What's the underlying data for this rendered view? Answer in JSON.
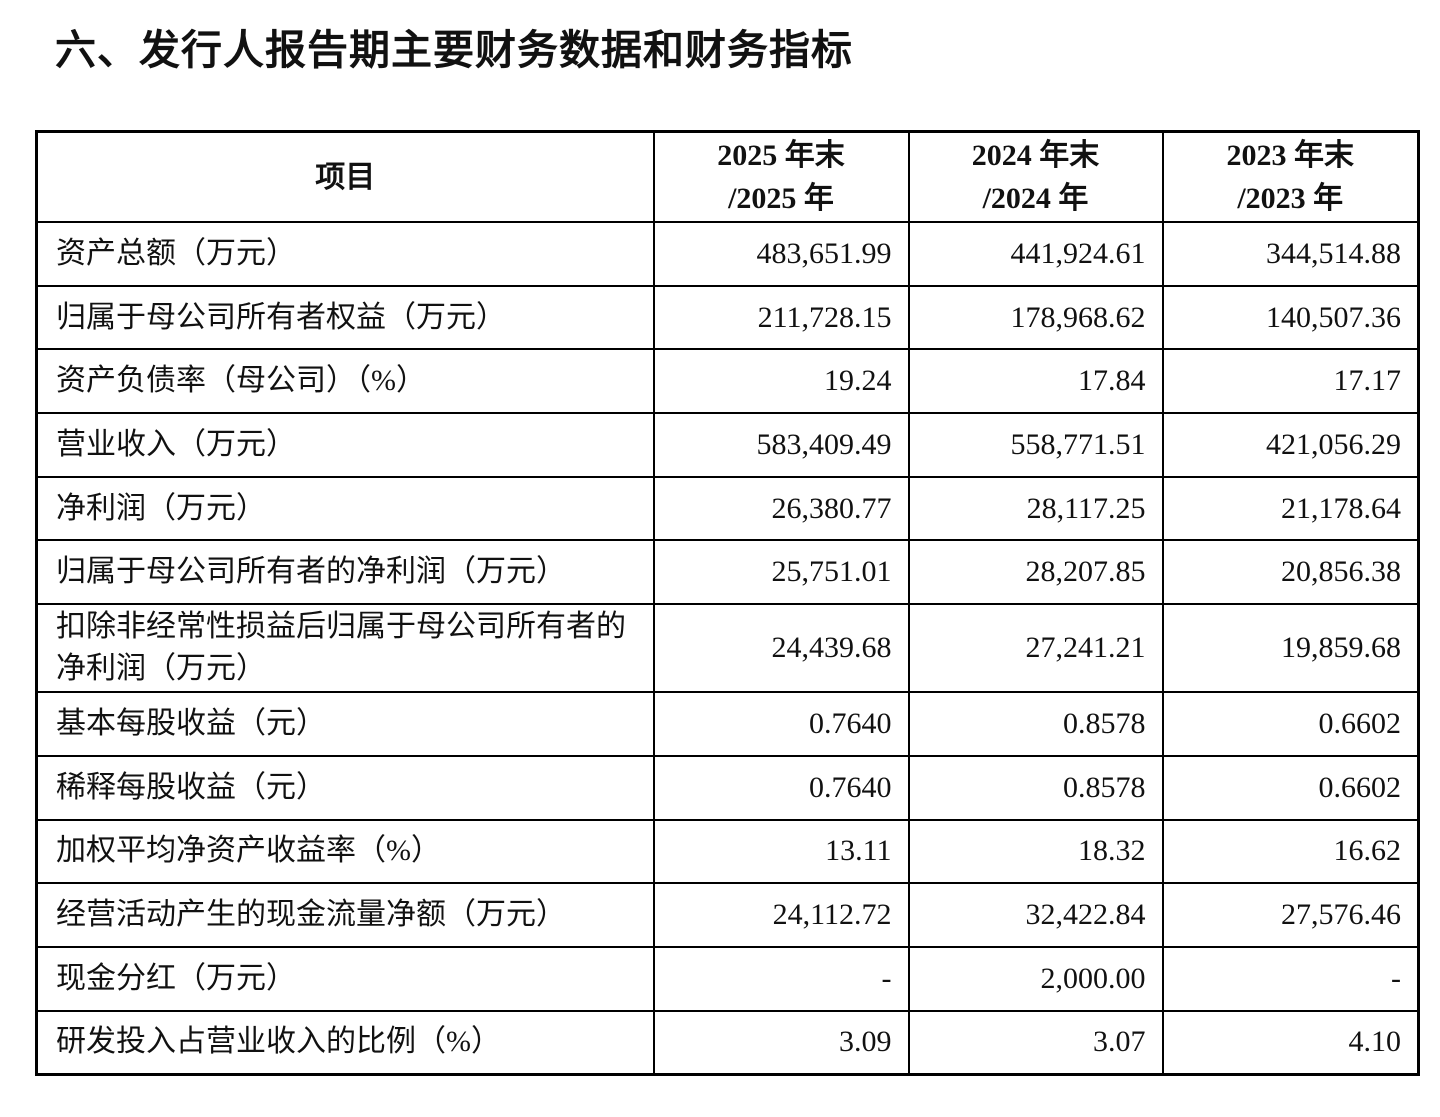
{
  "title": "六、发行人报告期主要财务数据和财务指标",
  "table": {
    "header": [
      [
        "项目"
      ],
      [
        "2025 年末",
        "/2025 年"
      ],
      [
        "2024 年末",
        "/2024 年"
      ],
      [
        "2023 年末",
        "/2023 年"
      ]
    ],
    "rows": [
      [
        "资产总额（万元）",
        "483,651.99",
        "441,924.61",
        "344,514.88"
      ],
      [
        "归属于母公司所有者权益（万元）",
        "211,728.15",
        "178,968.62",
        "140,507.36"
      ],
      [
        "资产负债率（母公司）（%）",
        "19.24",
        "17.84",
        "17.17"
      ],
      [
        "营业收入（万元）",
        "583,409.49",
        "558,771.51",
        "421,056.29"
      ],
      [
        "净利润（万元）",
        "26,380.77",
        "28,117.25",
        "21,178.64"
      ],
      [
        "归属于母公司所有者的净利润（万元）",
        "25,751.01",
        "28,207.85",
        "20,856.38"
      ],
      [
        "扣除非经常性损益后归属于母公司所有者的净利润（万元）",
        "24,439.68",
        "27,241.21",
        "19,859.68"
      ],
      [
        "基本每股收益（元）",
        "0.7640",
        "0.8578",
        "0.6602"
      ],
      [
        "稀释每股收益（元）",
        "0.7640",
        "0.8578",
        "0.6602"
      ],
      [
        "加权平均净资产收益率（%）",
        "13.11",
        "18.32",
        "16.62"
      ],
      [
        "经营活动产生的现金流量净额（万元）",
        "24,112.72",
        "32,422.84",
        "27,576.46"
      ],
      [
        "现金分红（万元）",
        "-",
        "2,000.00",
        "-"
      ],
      [
        "研发投入占营业收入的比例（%）",
        "3.09",
        "3.07",
        "4.10"
      ]
    ]
  }
}
